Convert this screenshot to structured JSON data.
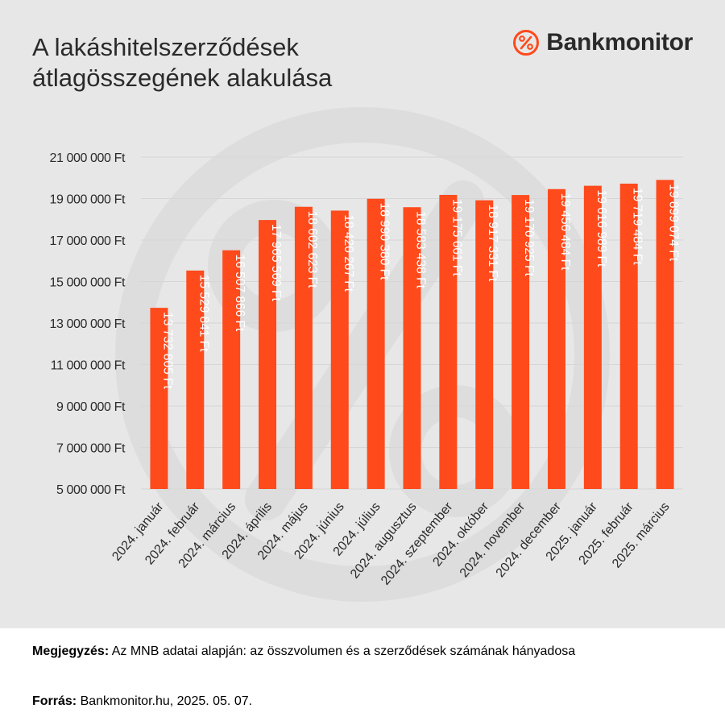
{
  "title_lines": [
    "A lakáshitelszerződések",
    "átlagösszegének alakulása"
  ],
  "brand": {
    "name": "Bankmonitor",
    "icon": "percent-circle-icon",
    "accent": "#ff4a1c"
  },
  "colors": {
    "bar": "#ff4a1c",
    "background": "#e7e7e7",
    "grid": "#d6d6d6",
    "text": "#2a2a2a",
    "bar_label": "#ffffff"
  },
  "chart_data": {
    "type": "bar",
    "categories": [
      "2024. január",
      "2024. február",
      "2024. március",
      "2024. április",
      "2024. május",
      "2024. június",
      "2024. július",
      "2024. augusztus",
      "2024. szeptember",
      "2024. október",
      "2024. november",
      "2024. december",
      "2025. január",
      "2025. február",
      "2025. március"
    ],
    "values": [
      13732805,
      15529841,
      16507866,
      17965569,
      18602623,
      18420267,
      18990380,
      18583438,
      19175661,
      18917331,
      19170925,
      19456484,
      19616989,
      19719484,
      19899074
    ],
    "data_labels": [
      "13 732 805 Ft",
      "15 529 841 Ft",
      "16 507 866 Ft",
      "17 965 569 Ft",
      "18 602 623 Ft",
      "18 420 267 Ft",
      "18 990 380 Ft",
      "18 583 438 Ft",
      "19 175 661 Ft",
      "18 917 331 Ft",
      "19 170 925 Ft",
      "19 456 484 Ft",
      "19 616 989 Ft",
      "19 719 484 Ft",
      "19 899 074 Ft"
    ],
    "yticks": [
      5000000,
      7000000,
      9000000,
      11000000,
      13000000,
      15000000,
      17000000,
      19000000,
      21000000
    ],
    "ytick_labels": [
      "5 000 000 Ft",
      "7 000 000 Ft",
      "9 000 000 Ft",
      "11 000 000 Ft",
      "13 000 000 Ft",
      "15 000 000 Ft",
      "17 000 000 Ft",
      "19 000 000 Ft",
      "21 000 000 Ft"
    ],
    "ylim": [
      5000000,
      21000000
    ],
    "grid": true,
    "legend": "none"
  },
  "footer": {
    "note_label": "Megjegyzés:",
    "note_text": "Az MNB adatai alapján: az összvolumen és a szerződések számának hányadosa",
    "source_label": "Forrás:",
    "source_text": "Bankmonitor.hu, 2025. 05. 07."
  }
}
